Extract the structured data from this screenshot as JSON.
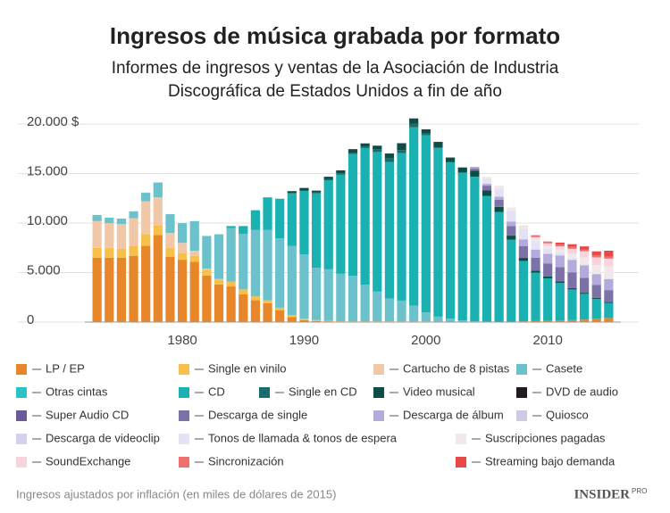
{
  "chart_data": {
    "type": "stacked_bar",
    "title": "Ingresos de música grabada por formato",
    "subtitle": [
      "Informes de ingresos y ventas de la Asociación de Industria",
      "Discográfica de Estados Unidos a fin de año"
    ],
    "note": "Ingresos ajustados por inflación (en miles de dólares de 2015)",
    "source": {
      "name": "INSIDER",
      "tag": "PRO"
    },
    "x": [
      1973,
      1974,
      1975,
      1976,
      1977,
      1978,
      1979,
      1980,
      1981,
      1982,
      1983,
      1984,
      1985,
      1986,
      1987,
      1988,
      1989,
      1990,
      1991,
      1992,
      1993,
      1994,
      1995,
      1996,
      1997,
      1998,
      1999,
      2000,
      2001,
      2002,
      2003,
      2004,
      2005,
      2006,
      2007,
      2008,
      2009,
      2010,
      2011,
      2012,
      2013,
      2014,
      2015
    ],
    "xlim": [
      1972,
      2016
    ],
    "xticks": [
      1980,
      1990,
      2000,
      2010
    ],
    "ylim": [
      0,
      21000
    ],
    "yticks": [
      0,
      {
        "value": 5000,
        "label": "5.000"
      },
      {
        "value": 10000,
        "label": "10.000"
      },
      {
        "value": 15000,
        "label": "15.000"
      },
      {
        "value": 20000,
        "label": "20.000 $"
      }
    ],
    "grid": true,
    "series": [
      {
        "name": "LP / EP",
        "color": "#e8862a",
        "values": [
          6500,
          6500,
          6500,
          6700,
          7700,
          8800,
          6600,
          6300,
          6100,
          4700,
          3800,
          3600,
          2800,
          2200,
          1900,
          1200,
          500,
          200,
          100,
          50,
          30,
          30,
          40,
          50,
          50,
          50,
          50,
          50,
          40,
          30,
          30,
          30,
          30,
          30,
          30,
          80,
          100,
          120,
          150,
          200,
          250,
          330,
          420
        ]
      },
      {
        "name": "Single en vinilo",
        "color": "#f7c04a",
        "values": [
          1000,
          1000,
          900,
          1000,
          1200,
          1000,
          900,
          700,
          600,
          600,
          500,
          500,
          500,
          400,
          300,
          250,
          200,
          150,
          100,
          80,
          50,
          40,
          40,
          30,
          30,
          20,
          20,
          20,
          10,
          10,
          null,
          null,
          null,
          null,
          null,
          null,
          null,
          null,
          null,
          null,
          null,
          null,
          null
        ]
      },
      {
        "name": "Cartucho de 8 pistas",
        "color": "#f0c8a8",
        "values": [
          2700,
          2500,
          2500,
          2800,
          3300,
          2800,
          1500,
          1000,
          500,
          100,
          50,
          null,
          null,
          null,
          null,
          null,
          null,
          null,
          null,
          null,
          null,
          null,
          null,
          null,
          null,
          null,
          null,
          null,
          null,
          null,
          null,
          null,
          null,
          null,
          null,
          null,
          null,
          null,
          null,
          null,
          null,
          null,
          null
        ]
      },
      {
        "name": "Casete",
        "color": "#6cc2cc",
        "values": [
          500,
          450,
          500,
          650,
          850,
          1500,
          1900,
          2000,
          3000,
          3300,
          4500,
          5400,
          5600,
          6700,
          7100,
          7000,
          7000,
          6500,
          5300,
          5200,
          4800,
          4600,
          3700,
          3000,
          2300,
          2100,
          1600,
          900,
          500,
          300,
          150,
          50,
          20,
          null,
          null,
          null,
          null,
          null,
          null,
          null,
          null,
          null,
          null
        ]
      },
      {
        "name": "Otras cintas",
        "color": "#2bc4c4",
        "values": [
          100,
          80,
          50,
          40,
          30,
          null,
          null,
          null,
          null,
          null,
          null,
          null,
          null,
          null,
          null,
          null,
          null,
          null,
          null,
          null,
          null,
          null,
          null,
          null,
          null,
          null,
          null,
          null,
          null,
          null,
          null,
          null,
          null,
          null,
          null,
          null,
          null,
          null,
          null,
          null,
          null,
          null,
          null
        ]
      },
      {
        "name": "CD",
        "color": "#19b1b1",
        "values": [
          null,
          null,
          null,
          null,
          null,
          null,
          null,
          null,
          null,
          null,
          20,
          200,
          800,
          2000,
          3300,
          4000,
          5300,
          6400,
          7500,
          9000,
          10000,
          12300,
          13800,
          14100,
          13800,
          14900,
          18000,
          17900,
          17000,
          15800,
          14900,
          14600,
          12700,
          11100,
          8300,
          6100,
          4900,
          4300,
          3800,
          3100,
          2600,
          2000,
          1500
        ]
      },
      {
        "name": "Single en CD",
        "color": "#1a6b6b",
        "values": [
          null,
          null,
          null,
          null,
          null,
          null,
          null,
          null,
          null,
          null,
          null,
          null,
          null,
          null,
          null,
          10,
          30,
          50,
          80,
          100,
          150,
          150,
          170,
          300,
          400,
          300,
          350,
          200,
          100,
          30,
          20,
          10,
          null,
          null,
          null,
          null,
          null,
          null,
          null,
          null,
          null,
          null,
          null
        ]
      },
      {
        "name": "Video musical",
        "color": "#0d4d45",
        "values": [
          null,
          null,
          null,
          null,
          null,
          null,
          null,
          null,
          null,
          null,
          null,
          null,
          null,
          null,
          null,
          null,
          200,
          250,
          200,
          250,
          300,
          350,
          300,
          340,
          450,
          700,
          550,
          400,
          550,
          450,
          500,
          600,
          550,
          500,
          400,
          300,
          200,
          200,
          150,
          120,
          110,
          100,
          100
        ]
      },
      {
        "name": "DVD de audio",
        "color": "#241a22",
        "values": [
          null,
          null,
          null,
          null,
          null,
          null,
          null,
          null,
          null,
          null,
          null,
          null,
          null,
          null,
          null,
          null,
          null,
          null,
          null,
          null,
          null,
          null,
          null,
          null,
          null,
          null,
          null,
          null,
          10,
          10,
          10,
          20,
          20,
          10,
          10,
          5,
          5,
          5,
          5,
          5,
          5,
          5,
          5
        ]
      },
      {
        "name": "Super Audio CD",
        "color": "#6a5a9a",
        "values": [
          null,
          null,
          null,
          null,
          null,
          null,
          null,
          null,
          null,
          null,
          null,
          null,
          null,
          null,
          null,
          null,
          null,
          null,
          null,
          null,
          null,
          null,
          null,
          null,
          null,
          null,
          null,
          null,
          null,
          null,
          30,
          20,
          10,
          10,
          5,
          5,
          5,
          5,
          5,
          5,
          5,
          5,
          5
        ]
      },
      {
        "name": "Descarga de single",
        "color": "#7d72a8",
        "values": [
          null,
          null,
          null,
          null,
          null,
          null,
          null,
          null,
          null,
          null,
          null,
          null,
          null,
          null,
          null,
          null,
          null,
          null,
          null,
          null,
          null,
          null,
          null,
          null,
          null,
          null,
          null,
          null,
          null,
          null,
          null,
          200,
          450,
          700,
          950,
          1200,
          1300,
          1300,
          1450,
          1600,
          1500,
          1300,
          1200
        ]
      },
      {
        "name": "Descarga de álbum",
        "color": "#b5aadc",
        "values": [
          null,
          null,
          null,
          null,
          null,
          null,
          null,
          null,
          null,
          null,
          null,
          null,
          null,
          null,
          null,
          null,
          null,
          null,
          null,
          null,
          null,
          null,
          null,
          null,
          null,
          null,
          null,
          null,
          null,
          null,
          null,
          150,
          180,
          320,
          450,
          650,
          800,
          950,
          1150,
          1250,
          1250,
          1100,
          1100
        ]
      },
      {
        "name": "Quiosco",
        "color": "#d0c8e8",
        "values": [
          null,
          null,
          null,
          null,
          null,
          null,
          null,
          null,
          null,
          null,
          null,
          null,
          null,
          null,
          null,
          null,
          null,
          null,
          null,
          null,
          null,
          null,
          null,
          null,
          null,
          null,
          null,
          null,
          null,
          null,
          null,
          null,
          5,
          5,
          5,
          5,
          10,
          10,
          5,
          5,
          5,
          5,
          5
        ]
      },
      {
        "name": "Descarga de videoclip",
        "color": "#d6d0ee",
        "values": [
          null,
          null,
          null,
          null,
          null,
          null,
          null,
          null,
          null,
          null,
          null,
          null,
          null,
          null,
          null,
          null,
          null,
          null,
          null,
          null,
          null,
          null,
          null,
          null,
          null,
          null,
          null,
          null,
          null,
          null,
          null,
          null,
          5,
          20,
          30,
          50,
          60,
          60,
          50,
          40,
          30,
          30,
          25
        ]
      },
      {
        "name": "Tonos de llamada & tonos de espera",
        "color": "#e4e2f4",
        "values": [
          null,
          null,
          null,
          null,
          null,
          null,
          null,
          null,
          null,
          null,
          null,
          null,
          null,
          null,
          null,
          null,
          null,
          null,
          null,
          null,
          null,
          null,
          null,
          null,
          null,
          null,
          null,
          null,
          null,
          null,
          null,
          null,
          500,
          800,
          1100,
          1000,
          800,
          500,
          300,
          170,
          100,
          70,
          50
        ]
      },
      {
        "name": "Suscripciones pagadas",
        "color": "#f2e8ea",
        "values": [
          null,
          null,
          null,
          null,
          null,
          null,
          null,
          null,
          null,
          null,
          null,
          null,
          null,
          null,
          null,
          null,
          null,
          null,
          null,
          null,
          null,
          null,
          null,
          null,
          null,
          null,
          null,
          null,
          null,
          null,
          null,
          null,
          180,
          230,
          240,
          250,
          230,
          230,
          260,
          430,
          680,
          800,
          1200
        ]
      },
      {
        "name": "SoundExchange",
        "color": "#f8d4dc",
        "values": [
          null,
          null,
          null,
          null,
          null,
          null,
          null,
          null,
          null,
          null,
          null,
          null,
          null,
          null,
          null,
          null,
          null,
          null,
          null,
          null,
          null,
          null,
          null,
          null,
          null,
          null,
          null,
          null,
          null,
          null,
          null,
          null,
          30,
          40,
          40,
          100,
          170,
          270,
          320,
          480,
          620,
          790,
          800
        ]
      },
      {
        "name": "Sincronización",
        "color": "#f07070",
        "values": [
          null,
          null,
          null,
          null,
          null,
          null,
          null,
          null,
          null,
          null,
          null,
          null,
          null,
          null,
          null,
          null,
          null,
          null,
          null,
          null,
          null,
          null,
          null,
          null,
          null,
          null,
          null,
          null,
          null,
          null,
          null,
          null,
          null,
          null,
          null,
          null,
          200,
          190,
          200,
          190,
          190,
          190,
          200
        ]
      },
      {
        "name": "Streaming bajo demanda",
        "color": "#e84848",
        "values": [
          null,
          null,
          null,
          null,
          null,
          null,
          null,
          null,
          null,
          null,
          null,
          null,
          null,
          null,
          null,
          null,
          null,
          null,
          null,
          null,
          null,
          null,
          null,
          null,
          null,
          null,
          null,
          null,
          null,
          null,
          null,
          null,
          null,
          null,
          null,
          null,
          null,
          null,
          180,
          270,
          300,
          420,
          600
        ]
      }
    ]
  }
}
